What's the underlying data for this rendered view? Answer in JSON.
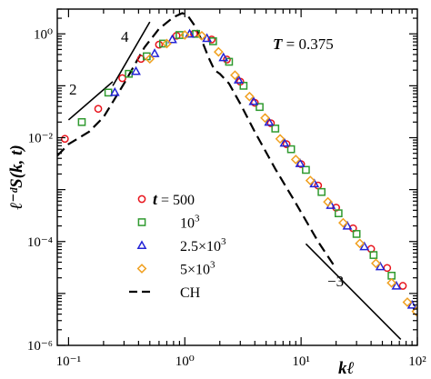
{
  "chart_data": {
    "type": "scatter",
    "title": "",
    "xlabel": "kℓ",
    "ylabel": "ℓ⁻ᵈS(k, t)",
    "xscale": "log",
    "yscale": "log",
    "xlim": [
      0.08,
      100
    ],
    "ylim": [
      1e-06,
      3
    ],
    "x_tick_labels": [
      "10⁻¹",
      "10⁰",
      "10¹",
      "10²"
    ],
    "y_tick_labels": [
      "10⁻⁶",
      "10⁻⁴",
      "10⁻²",
      "10⁰"
    ],
    "x_tick_values": [
      0.1,
      1,
      10,
      100
    ],
    "y_tick_values": [
      1e-06,
      0.0001,
      0.01,
      1
    ],
    "grid": false,
    "legend_position": "lower-left",
    "temperature_label": {
      "symbol": "T",
      "text": " = 0.375"
    },
    "slope_labels": {
      "left_steep": "4",
      "left_shallow": "2",
      "right": "−3"
    },
    "legend": {
      "t_symbol": "t",
      "entries": [
        {
          "label": " = 500",
          "marker": "circle",
          "color": "#e8141c"
        },
        {
          "label": "10",
          "sup": "3",
          "marker": "square",
          "color": "#2f9a2f"
        },
        {
          "label": "2.5×10",
          "sup": "3",
          "marker": "triangle",
          "color": "#2323d6"
        },
        {
          "label": "5×10",
          "sup": "3",
          "marker": "diamond",
          "color": "#f0a020"
        },
        {
          "label": "CH",
          "marker": "dashed-line",
          "color": "#000000"
        }
      ]
    },
    "series": [
      {
        "marker": "circle",
        "color": "#e8141c",
        "x": [
          0.093,
          0.18,
          0.29,
          0.42,
          0.6,
          0.85,
          1.2,
          1.7,
          2.3,
          3.0,
          4.0,
          5.5,
          7.5,
          10,
          14,
          20,
          28,
          40,
          55,
          75
        ],
        "y": [
          0.0095,
          0.036,
          0.14,
          0.33,
          0.62,
          0.92,
          1.0,
          0.78,
          0.32,
          0.12,
          0.047,
          0.019,
          0.0075,
          0.0031,
          0.0012,
          0.00045,
          0.00018,
          7.2e-05,
          3.1e-05,
          1.4e-05
        ]
      },
      {
        "marker": "square",
        "color": "#2f9a2f",
        "x": [
          0.13,
          0.22,
          0.33,
          0.47,
          0.65,
          0.9,
          1.25,
          1.75,
          2.4,
          3.2,
          4.4,
          6.0,
          8.2,
          11,
          15,
          21,
          30,
          42,
          60
        ],
        "y": [
          0.02,
          0.074,
          0.17,
          0.37,
          0.65,
          0.95,
          1.0,
          0.72,
          0.29,
          0.1,
          0.039,
          0.015,
          0.006,
          0.0024,
          0.0009,
          0.00035,
          0.00014,
          5.5e-05,
          2.2e-05
        ]
      },
      {
        "marker": "triangle",
        "color": "#2323d6",
        "x": [
          0.25,
          0.38,
          0.55,
          0.78,
          1.1,
          1.55,
          2.15,
          2.9,
          3.9,
          5.3,
          7.2,
          9.8,
          13,
          18,
          25,
          35,
          48,
          66,
          90
        ],
        "y": [
          0.075,
          0.19,
          0.42,
          0.78,
          1.0,
          0.82,
          0.35,
          0.13,
          0.05,
          0.02,
          0.0079,
          0.0032,
          0.0013,
          0.0005,
          0.0002,
          8e-05,
          3.3e-05,
          1.4e-05,
          6e-06
        ]
      },
      {
        "marker": "diamond",
        "color": "#f0a020",
        "x": [
          0.5,
          0.7,
          1.0,
          1.4,
          1.95,
          2.7,
          3.6,
          4.9,
          6.6,
          9.0,
          12,
          17,
          23,
          32,
          44,
          60,
          82,
          98
        ],
        "y": [
          0.33,
          0.65,
          0.95,
          0.92,
          0.45,
          0.16,
          0.062,
          0.024,
          0.0095,
          0.0038,
          0.0015,
          0.00058,
          0.00023,
          9.2e-05,
          3.8e-05,
          1.6e-05,
          6.8e-06,
          4.5e-06
        ]
      }
    ],
    "ch_curve": {
      "style": "dashed",
      "color": "#000000",
      "x": [
        0.08,
        0.1,
        0.15,
        0.2,
        0.3,
        0.45,
        0.6,
        0.8,
        0.95,
        1.05,
        1.2,
        1.4,
        1.6,
        1.8,
        2.0,
        2.4,
        3.0,
        4.0,
        6.0,
        9.0,
        14,
        20
      ],
      "y": [
        0.0045,
        0.0075,
        0.013,
        0.025,
        0.11,
        0.55,
        1.25,
        2.1,
        2.5,
        2.3,
        1.5,
        0.75,
        0.35,
        0.2,
        0.17,
        0.11,
        0.045,
        0.013,
        0.0025,
        0.00055,
        0.0001,
        3e-05
      ]
    },
    "slope_guides": [
      {
        "label": "4",
        "x": [
          0.24,
          0.5
        ],
        "y": [
          0.1,
          1.7
        ]
      },
      {
        "label": "2",
        "x": [
          0.1,
          0.24
        ],
        "y": [
          0.022,
          0.12
        ]
      },
      {
        "label": "−3",
        "x": [
          11,
          72
        ],
        "y": [
          9e-05,
          1.3e-06
        ]
      }
    ]
  }
}
